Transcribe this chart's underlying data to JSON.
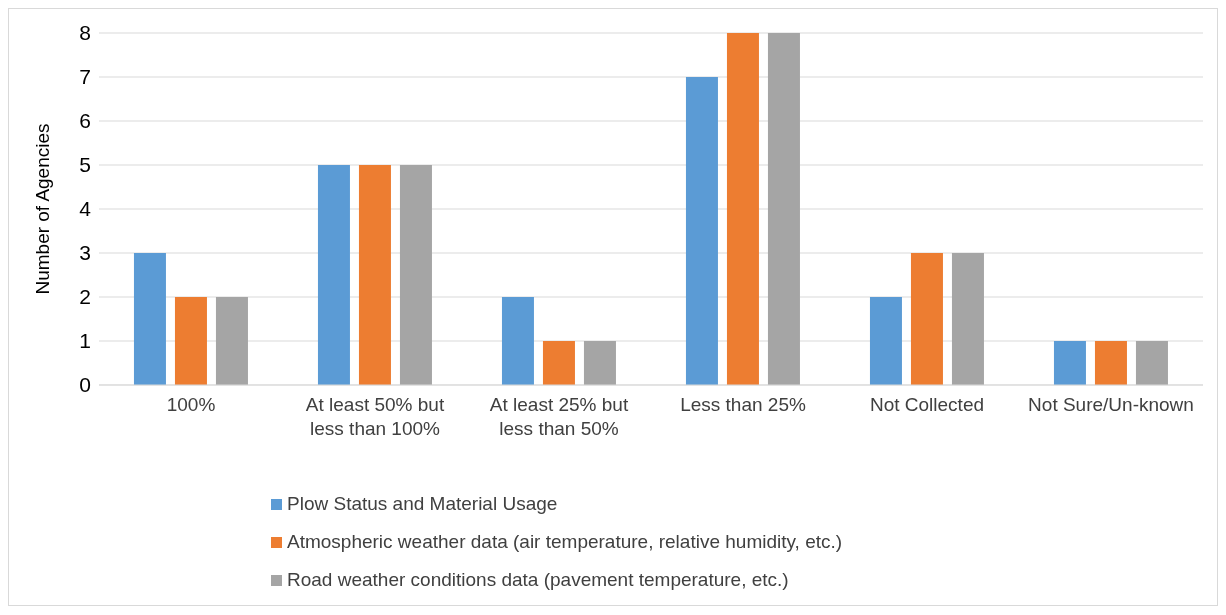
{
  "chart_data": {
    "type": "bar",
    "ylabel": "Number of Agencies",
    "categories": [
      "100%",
      "At least 50% but less than 100%",
      "At least 25% but less than 50%",
      "Less than 25%",
      "Not Collected",
      "Not Sure/Un-known"
    ],
    "series": [
      {
        "name": "Plow Status and Material Usage",
        "color": "#5b9bd5",
        "values": [
          3,
          5,
          2,
          7,
          2,
          1
        ]
      },
      {
        "name": "Atmospheric weather data (air temperature, relative humidity, etc.)",
        "color": "#ed7d31",
        "values": [
          2,
          5,
          1,
          8,
          3,
          1
        ]
      },
      {
        "name": "Road weather conditions data (pavement temperature, etc.)",
        "color": "#a5a5a5",
        "values": [
          2,
          5,
          1,
          8,
          3,
          1
        ]
      }
    ],
    "ylim": [
      0,
      8
    ],
    "yticks": [
      0,
      1,
      2,
      3,
      4,
      5,
      6,
      7,
      8
    ],
    "grid": "y",
    "legend": "bottom"
  }
}
